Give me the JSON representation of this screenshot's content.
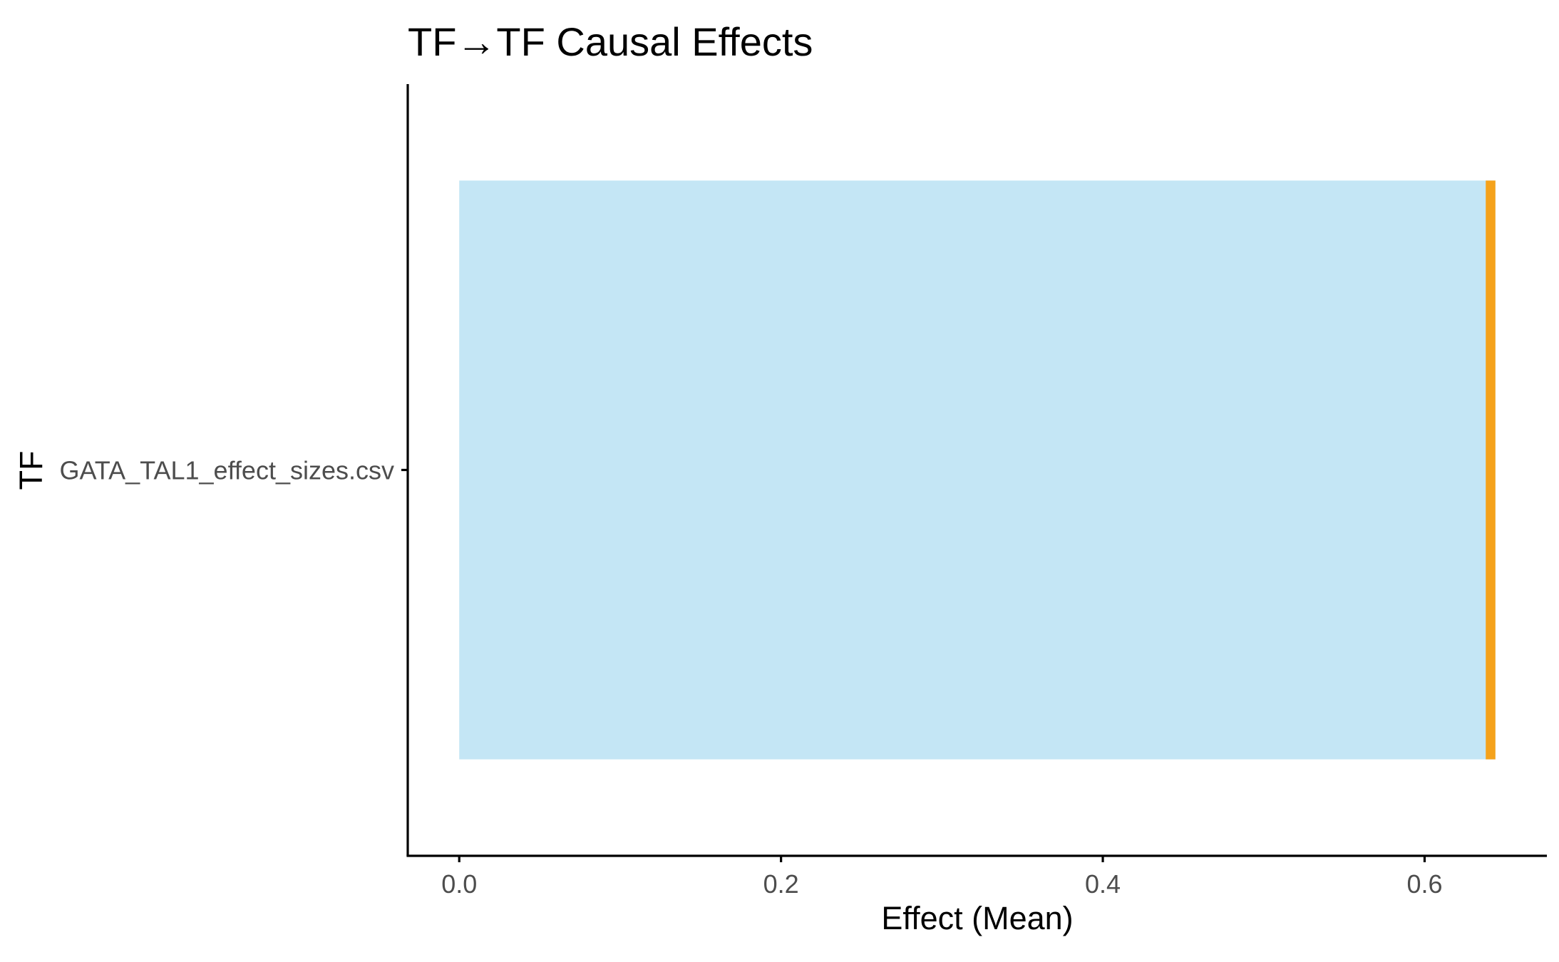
{
  "chart_data": {
    "type": "bar",
    "orientation": "horizontal",
    "title": "TF→TF Causal Effects",
    "xlabel": "Effect (Mean)",
    "ylabel": "TF",
    "categories": [
      "GATA_TAL1_effect_sizes.csv"
    ],
    "values": [
      0.644
    ],
    "xlim": [
      -0.032,
      0.676
    ],
    "x_ticks": [
      0.0,
      0.2,
      0.4,
      0.6
    ],
    "x_tick_labels": [
      "0.0",
      "0.2",
      "0.4",
      "0.6"
    ],
    "interval": {
      "low": [
        0.638
      ],
      "high": [
        0.644
      ]
    },
    "grid": false,
    "legend": "none",
    "colors": {
      "bar": "#c4e6f5",
      "interval": "#f5a21b",
      "axis": "#000000",
      "tick_label": "#4d4d4d"
    }
  }
}
